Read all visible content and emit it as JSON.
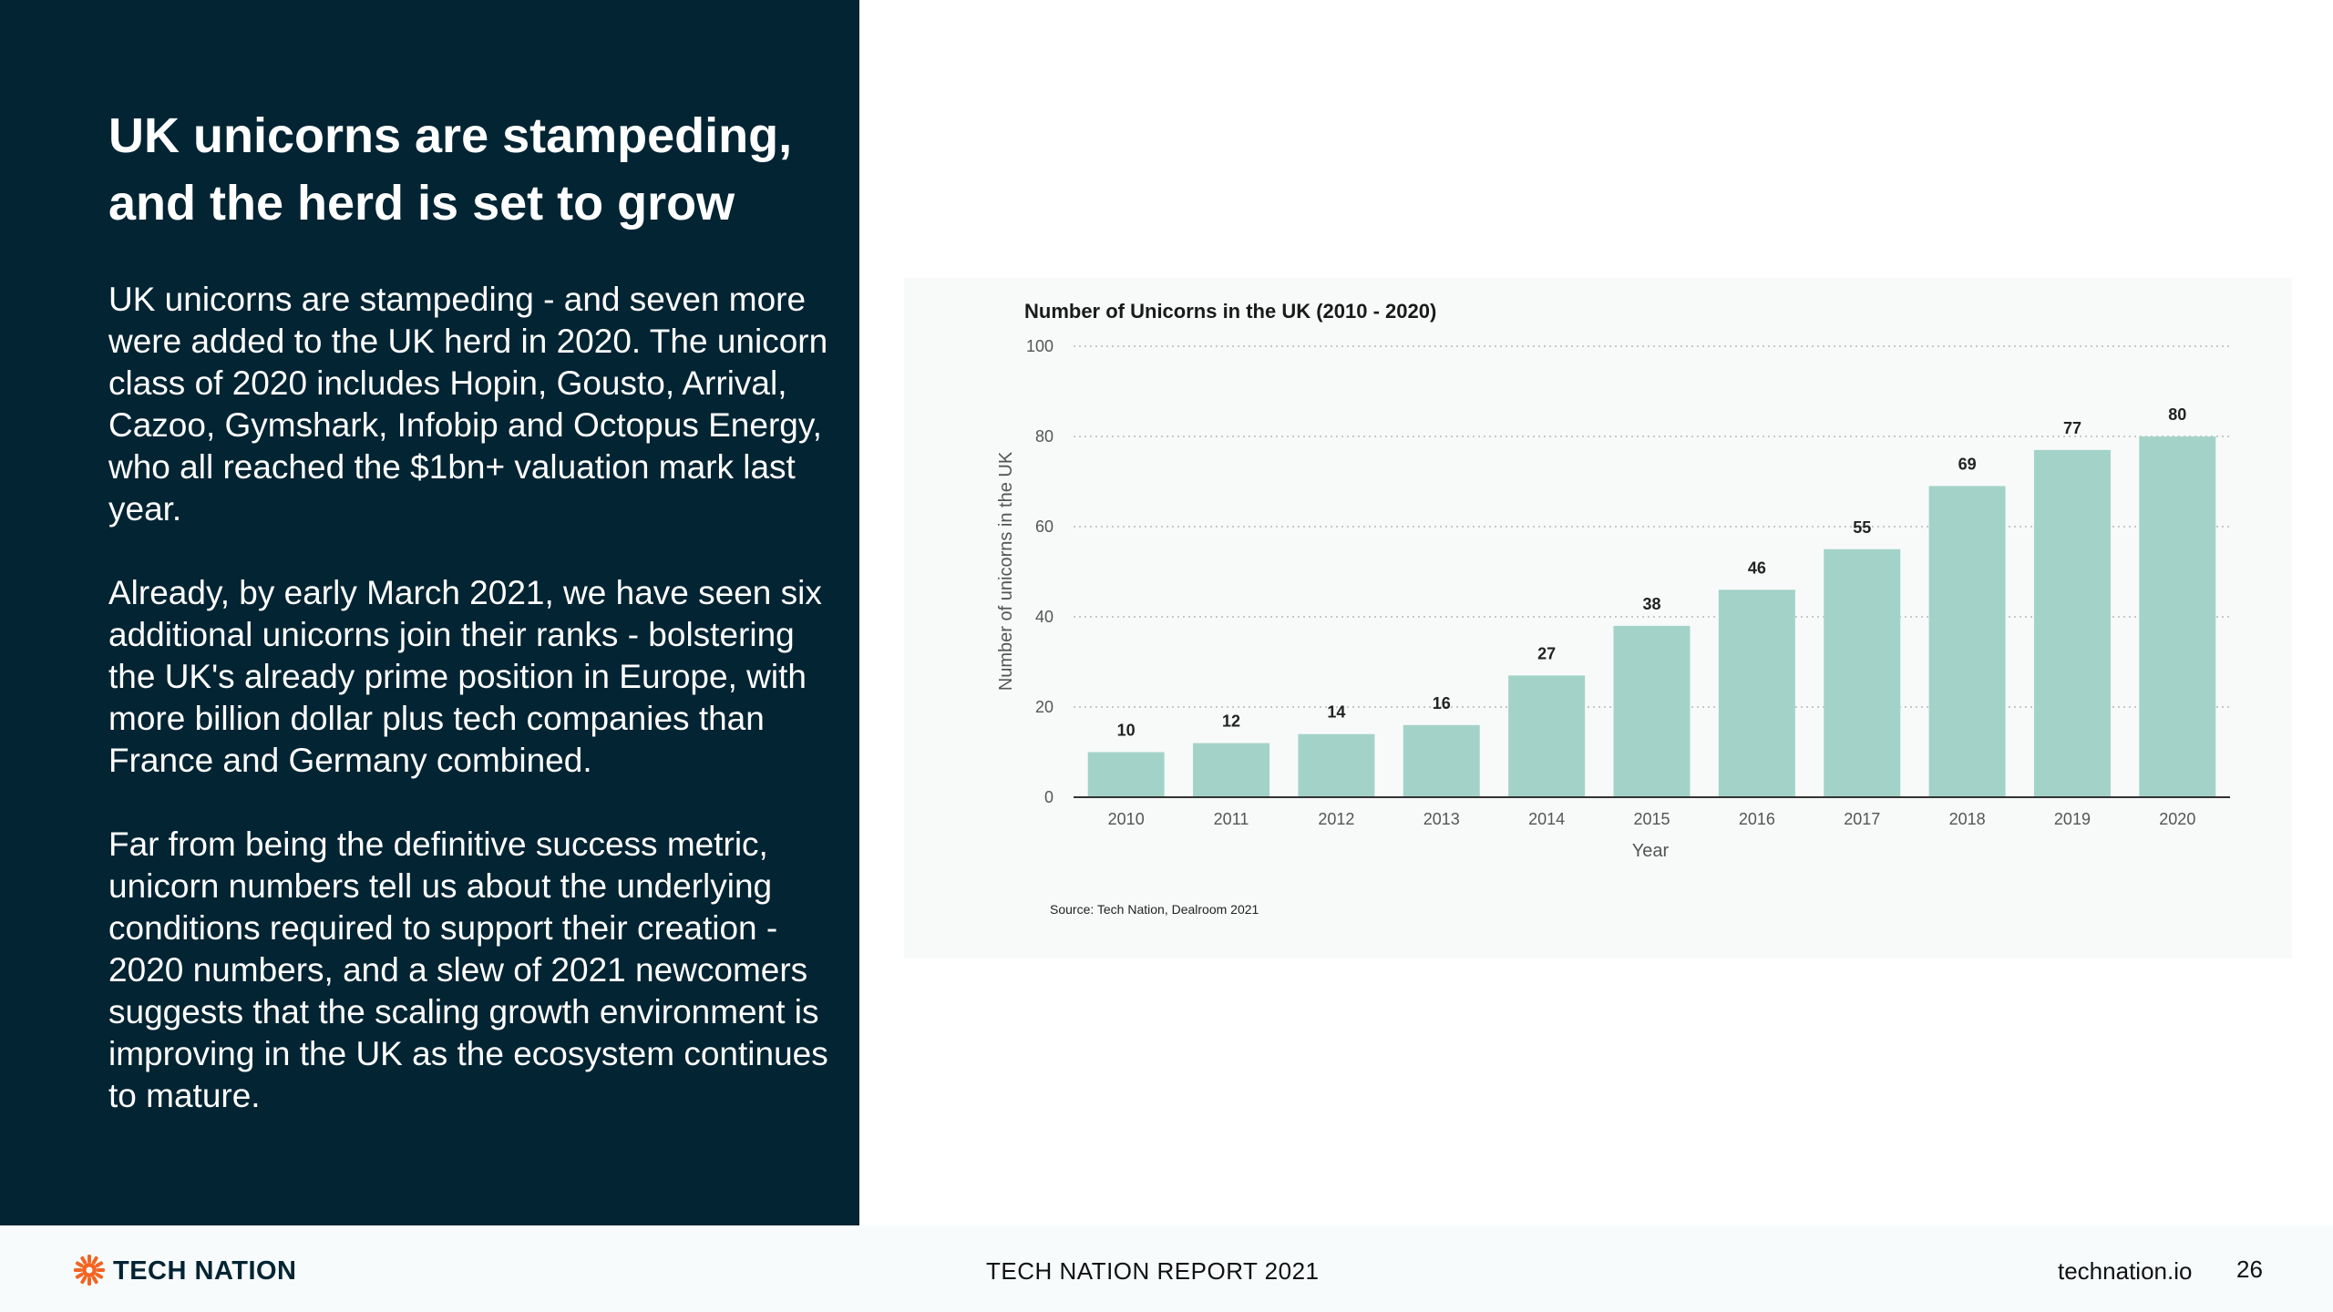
{
  "panel": {
    "headline_line1": "UK unicorns are stampeding,",
    "headline_line2": "and the herd is set to grow",
    "paragraphs": [
      "UK unicorns are stampeding - and seven more were added to the UK herd in 2020. The unicorn class of 2020 includes Hopin, Gousto, Arrival, Cazoo, Gymshark, Infobip and Octopus Energy, who all reached the $1bn+ valuation mark last year.",
      "Already, by early March 2021, we have seen six additional unicorns join their ranks - bolstering the UK's already prime position in Europe, with more billion dollar plus tech companies than France and Germany combined.",
      "Far from being the definitive success metric, unicorn numbers tell us about the underlying conditions required to support their creation - 2020 numbers, and a slew of 2021 newcomers suggests that the scaling growth environment is improving in the UK as the ecosystem continues to mature."
    ]
  },
  "chart_data": {
    "type": "bar",
    "title": "Number of Unicorns in the UK (2010 - 2020)",
    "xlabel": "Year",
    "ylabel": "Number of unicorns in the UK",
    "categories": [
      "2010",
      "2011",
      "2012",
      "2013",
      "2014",
      "2015",
      "2016",
      "2017",
      "2018",
      "2019",
      "2020"
    ],
    "values": [
      10,
      12,
      14,
      16,
      27,
      38,
      46,
      55,
      69,
      77,
      80
    ],
    "ylim": [
      0,
      100
    ],
    "yticks": [
      0,
      20,
      40,
      60,
      80,
      100
    ],
    "grid": true,
    "bar_color": "#a3d3c8",
    "source": "Source: Tech Nation, Dealroom 2021"
  },
  "footer": {
    "brand": "TECH NATION",
    "report": "TECH NATION REPORT 2021",
    "site": "technation.io",
    "page": "26",
    "logo_icon": "sunburst-logo-icon",
    "logo_color": "#f26522"
  }
}
